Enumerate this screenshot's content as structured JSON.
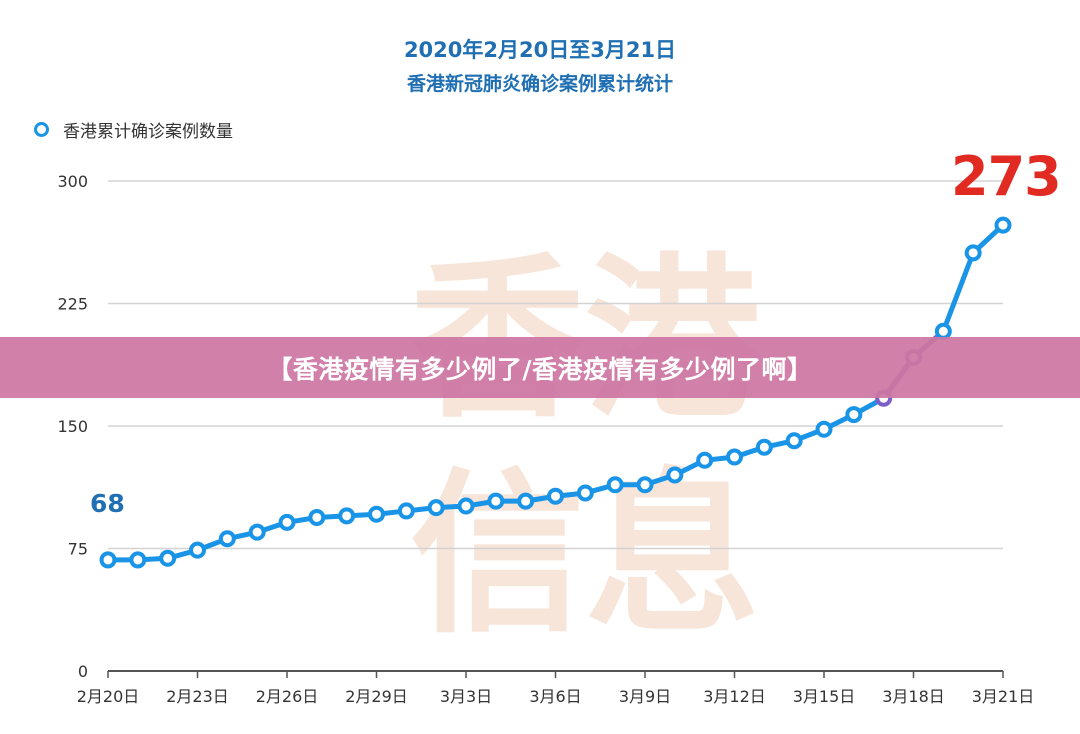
{
  "page": {
    "title_line1": "2020年2月20日至3月21日",
    "title_line2": "香港新冠肺炎确诊案例累计统计",
    "legend_label": "香港累计确诊案例数量",
    "start_label": "68",
    "end_label": "273",
    "watermark": "香港信息",
    "banner_text": "【香港疫情有多少例了/香港疫情有多少例了啊】"
  },
  "colors": {
    "line": "#1a94e6",
    "line_highlight": "#7b5fc7",
    "title": "#1f6fb2",
    "end_label": "#e02a22",
    "grid": "#d3d3d3",
    "banner": "#cc76a3"
  },
  "chart_data": {
    "type": "line",
    "title": "2020年2月20日至3月21日 香港新冠肺炎确诊案例累计统计",
    "xlabel": "",
    "ylabel": "",
    "ylim": [
      0,
      300
    ],
    "yticks": [
      "0",
      "75",
      "150",
      "225",
      "300"
    ],
    "xticks": [
      "2月20日",
      "2月23日",
      "2月26日",
      "2月29日",
      "3月3日",
      "3月6日",
      "3月9日",
      "3月12日",
      "3月15日",
      "3月18日",
      "3月21日"
    ],
    "grid": true,
    "legend_position": "top-left",
    "series": [
      {
        "name": "香港累计确诊案例数量",
        "values": [
          68,
          68,
          69,
          74,
          81,
          85,
          91,
          94,
          95,
          96,
          98,
          100,
          101,
          104,
          104,
          107,
          109,
          114,
          114,
          120,
          129,
          131,
          137,
          141,
          148,
          157,
          167,
          192,
          208,
          256,
          273
        ]
      }
    ]
  }
}
